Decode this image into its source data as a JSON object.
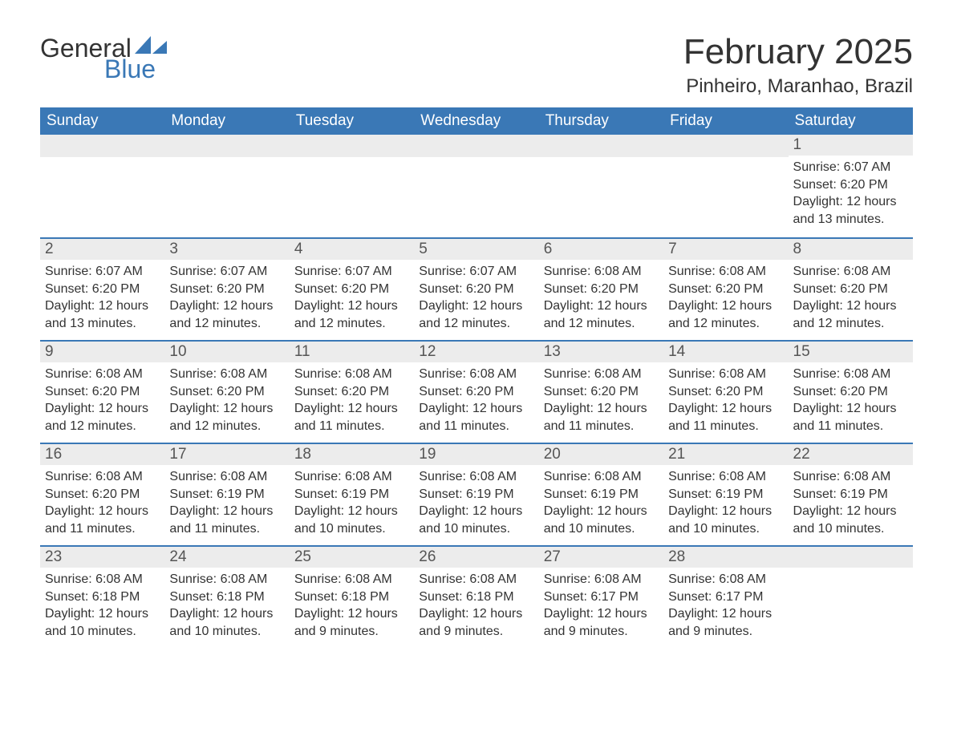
{
  "logo": {
    "word1": "General",
    "word2": "Blue",
    "sail_color": "#3a78b6"
  },
  "title": "February 2025",
  "location": "Pinheiro, Maranhao, Brazil",
  "colors": {
    "header_bg": "#3a78b6",
    "header_text": "#ffffff",
    "daynum_bg": "#ececec",
    "row_border": "#3a78b6",
    "body_bg": "#ffffff",
    "text": "#333333"
  },
  "fonts": {
    "title_pt": 44,
    "location_pt": 24,
    "th_pt": 19,
    "daynum_pt": 19,
    "body_pt": 16
  },
  "weekdays": [
    "Sunday",
    "Monday",
    "Tuesday",
    "Wednesday",
    "Thursday",
    "Friday",
    "Saturday"
  ],
  "labels": {
    "sunrise": "Sunrise:",
    "sunset": "Sunset:",
    "daylight": "Daylight:"
  },
  "weeks": [
    [
      null,
      null,
      null,
      null,
      null,
      null,
      {
        "n": "1",
        "sr": "6:07 AM",
        "ss": "6:20 PM",
        "dl": "12 hours and 13 minutes."
      }
    ],
    [
      {
        "n": "2",
        "sr": "6:07 AM",
        "ss": "6:20 PM",
        "dl": "12 hours and 13 minutes."
      },
      {
        "n": "3",
        "sr": "6:07 AM",
        "ss": "6:20 PM",
        "dl": "12 hours and 12 minutes."
      },
      {
        "n": "4",
        "sr": "6:07 AM",
        "ss": "6:20 PM",
        "dl": "12 hours and 12 minutes."
      },
      {
        "n": "5",
        "sr": "6:07 AM",
        "ss": "6:20 PM",
        "dl": "12 hours and 12 minutes."
      },
      {
        "n": "6",
        "sr": "6:08 AM",
        "ss": "6:20 PM",
        "dl": "12 hours and 12 minutes."
      },
      {
        "n": "7",
        "sr": "6:08 AM",
        "ss": "6:20 PM",
        "dl": "12 hours and 12 minutes."
      },
      {
        "n": "8",
        "sr": "6:08 AM",
        "ss": "6:20 PM",
        "dl": "12 hours and 12 minutes."
      }
    ],
    [
      {
        "n": "9",
        "sr": "6:08 AM",
        "ss": "6:20 PM",
        "dl": "12 hours and 12 minutes."
      },
      {
        "n": "10",
        "sr": "6:08 AM",
        "ss": "6:20 PM",
        "dl": "12 hours and 12 minutes."
      },
      {
        "n": "11",
        "sr": "6:08 AM",
        "ss": "6:20 PM",
        "dl": "12 hours and 11 minutes."
      },
      {
        "n": "12",
        "sr": "6:08 AM",
        "ss": "6:20 PM",
        "dl": "12 hours and 11 minutes."
      },
      {
        "n": "13",
        "sr": "6:08 AM",
        "ss": "6:20 PM",
        "dl": "12 hours and 11 minutes."
      },
      {
        "n": "14",
        "sr": "6:08 AM",
        "ss": "6:20 PM",
        "dl": "12 hours and 11 minutes."
      },
      {
        "n": "15",
        "sr": "6:08 AM",
        "ss": "6:20 PM",
        "dl": "12 hours and 11 minutes."
      }
    ],
    [
      {
        "n": "16",
        "sr": "6:08 AM",
        "ss": "6:20 PM",
        "dl": "12 hours and 11 minutes."
      },
      {
        "n": "17",
        "sr": "6:08 AM",
        "ss": "6:19 PM",
        "dl": "12 hours and 11 minutes."
      },
      {
        "n": "18",
        "sr": "6:08 AM",
        "ss": "6:19 PM",
        "dl": "12 hours and 10 minutes."
      },
      {
        "n": "19",
        "sr": "6:08 AM",
        "ss": "6:19 PM",
        "dl": "12 hours and 10 minutes."
      },
      {
        "n": "20",
        "sr": "6:08 AM",
        "ss": "6:19 PM",
        "dl": "12 hours and 10 minutes."
      },
      {
        "n": "21",
        "sr": "6:08 AM",
        "ss": "6:19 PM",
        "dl": "12 hours and 10 minutes."
      },
      {
        "n": "22",
        "sr": "6:08 AM",
        "ss": "6:19 PM",
        "dl": "12 hours and 10 minutes."
      }
    ],
    [
      {
        "n": "23",
        "sr": "6:08 AM",
        "ss": "6:18 PM",
        "dl": "12 hours and 10 minutes."
      },
      {
        "n": "24",
        "sr": "6:08 AM",
        "ss": "6:18 PM",
        "dl": "12 hours and 10 minutes."
      },
      {
        "n": "25",
        "sr": "6:08 AM",
        "ss": "6:18 PM",
        "dl": "12 hours and 9 minutes."
      },
      {
        "n": "26",
        "sr": "6:08 AM",
        "ss": "6:18 PM",
        "dl": "12 hours and 9 minutes."
      },
      {
        "n": "27",
        "sr": "6:08 AM",
        "ss": "6:17 PM",
        "dl": "12 hours and 9 minutes."
      },
      {
        "n": "28",
        "sr": "6:08 AM",
        "ss": "6:17 PM",
        "dl": "12 hours and 9 minutes."
      },
      null
    ]
  ]
}
